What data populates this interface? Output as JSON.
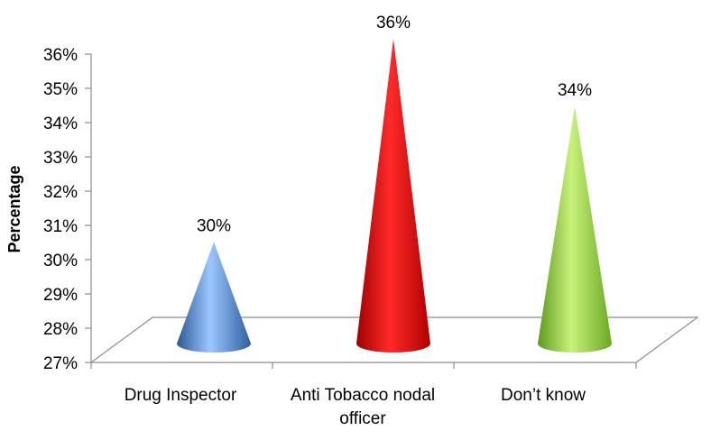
{
  "chart_data": {
    "type": "bar",
    "shape": "cone",
    "categories": [
      [
        "Drug Inspector"
      ],
      [
        "Anti Tobacco nodal",
        "officer"
      ],
      [
        "Don’t know"
      ]
    ],
    "values": [
      30,
      36,
      34
    ],
    "data_labels": [
      "30%",
      "36%",
      "34%"
    ],
    "colors": [
      "#4a7fc1",
      "#e01010",
      "#8fcf3c"
    ],
    "ylabel": "Percentage",
    "xlabel": "",
    "ylim": [
      27,
      36
    ],
    "y_ticks": [
      "27%",
      "28%",
      "29%",
      "30%",
      "31%",
      "32%",
      "33%",
      "34%",
      "35%",
      "36%"
    ],
    "grid": false,
    "legend": "none"
  }
}
